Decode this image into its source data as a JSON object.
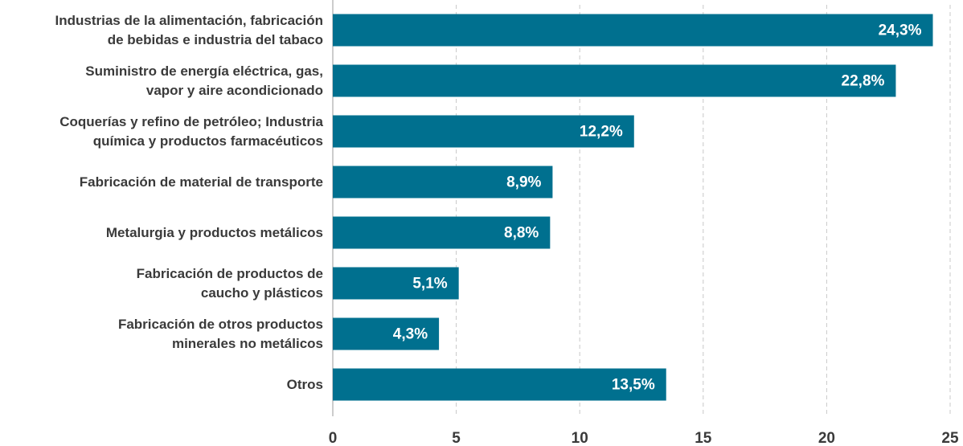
{
  "chart_data": {
    "type": "bar",
    "orientation": "horizontal",
    "categories": [
      "Industrias de la alimentación, fabricación\nde bebidas e industria del tabaco",
      "Suministro de energía eléctrica, gas,\nvapor y aire acondicionado",
      "Coquerías y refino de petróleo; Industria\nquímica y productos farmacéuticos",
      "Fabricación de material de transporte",
      "Metalurgia y productos metálicos",
      "Fabricación de productos de\ncaucho y plásticos",
      "Fabricación de otros productos\nminerales no metálicos",
      "Otros"
    ],
    "values": [
      24.3,
      22.8,
      12.2,
      8.9,
      8.8,
      5.1,
      4.3,
      13.5
    ],
    "value_labels": [
      "24,3%",
      "22,8%",
      "12,2%",
      "8,9%",
      "8,8%",
      "5,1%",
      "4,3%",
      "13,5%"
    ],
    "color": "#00708f",
    "xlim": [
      0,
      25
    ],
    "xticks": [
      0,
      5,
      10,
      15,
      20,
      25
    ],
    "grid": true
  }
}
